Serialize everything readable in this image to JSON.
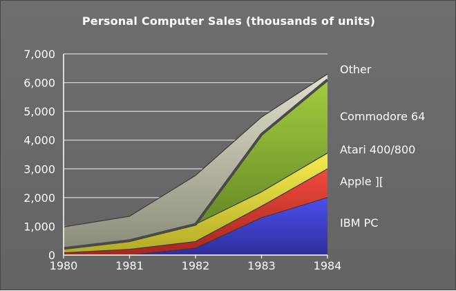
{
  "chart_data": {
    "type": "area",
    "stacked": true,
    "title": "Personal Computer Sales (thousands of units)",
    "x": [
      "1980",
      "1981",
      "1982",
      "1983",
      "1984"
    ],
    "ylim": [
      0,
      7000
    ],
    "yticks": [
      "0",
      "1,000",
      "2,000",
      "3,000",
      "4,000",
      "5,000",
      "6,000",
      "7,000"
    ],
    "grid": true,
    "legend_position": "right",
    "series": [
      {
        "name": "IBM PC",
        "values": [
          0,
          0,
          240,
          1300,
          2000
        ],
        "color": "#3b3fd8"
      },
      {
        "name": "Apple ][",
        "values": [
          80,
          200,
          230,
          400,
          1000
        ],
        "color": "#e03a30"
      },
      {
        "name": "Atari 400/800",
        "values": [
          150,
          300,
          600,
          500,
          550
        ],
        "color": "#e8e03c"
      },
      {
        "name": "Commodore 64",
        "values": [
          0,
          0,
          0,
          2000,
          2550
        ],
        "color": "#8fb836"
      },
      {
        "name": "Other",
        "values": [
          750,
          850,
          1700,
          600,
          200
        ],
        "color": "#c9c9b4"
      }
    ]
  }
}
